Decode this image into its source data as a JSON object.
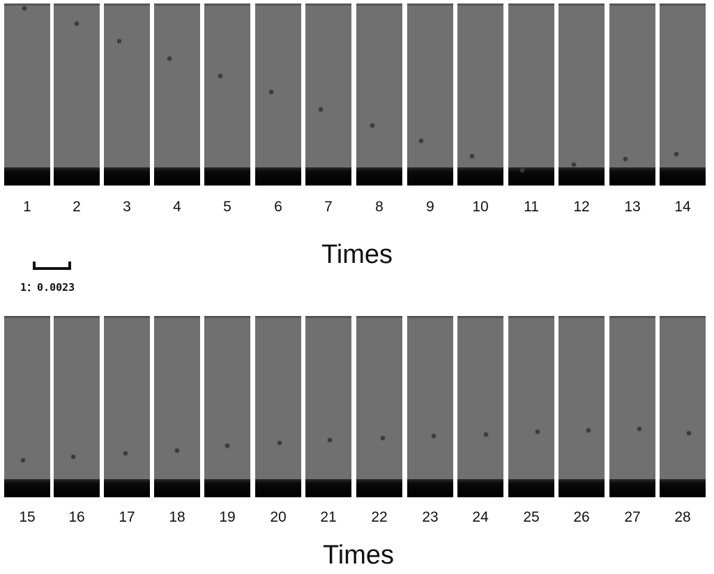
{
  "rows": [
    {
      "frames": [
        {
          "label": "1"
        },
        {
          "label": "2"
        },
        {
          "label": "3"
        },
        {
          "label": "4"
        },
        {
          "label": "5"
        },
        {
          "label": "6"
        },
        {
          "label": "7"
        },
        {
          "label": "8"
        },
        {
          "label": "9"
        },
        {
          "label": "10"
        },
        {
          "label": "11"
        },
        {
          "label": "12"
        },
        {
          "label": "13"
        },
        {
          "label": "14"
        }
      ],
      "axis_title": "Times"
    },
    {
      "frames": [
        {
          "label": "15"
        },
        {
          "label": "16"
        },
        {
          "label": "17"
        },
        {
          "label": "18"
        },
        {
          "label": "19"
        },
        {
          "label": "20"
        },
        {
          "label": "21"
        },
        {
          "label": "22"
        },
        {
          "label": "23"
        },
        {
          "label": "24"
        },
        {
          "label": "25"
        },
        {
          "label": "26"
        },
        {
          "label": "27"
        },
        {
          "label": "28"
        }
      ],
      "axis_title": "Times"
    }
  ],
  "scale": {
    "label": "1：0.0023"
  }
}
